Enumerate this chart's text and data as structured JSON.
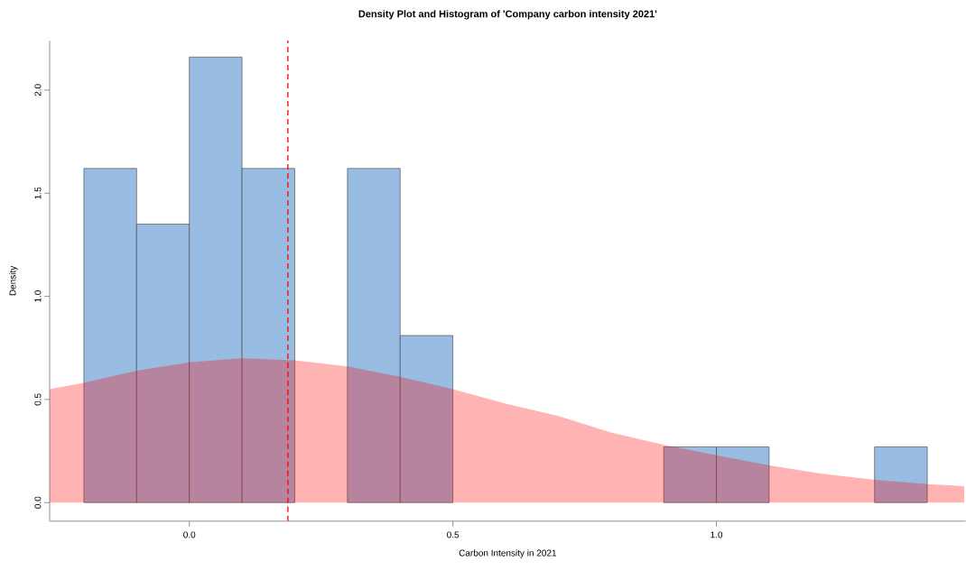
{
  "chart_data": {
    "type": "histogram",
    "title": "Density Plot and Histogram of 'Company carbon intensity 2021'",
    "xlabel": "Carbon Intensity in 2021",
    "ylabel": "Density",
    "series": [
      {
        "bins": [
          -0.2,
          -0.1,
          0,
          0.1,
          0.2,
          0.3,
          0.4,
          0.5,
          0.6,
          0.7,
          0.8,
          0.9,
          1.0,
          1.1,
          1.2,
          1.3,
          1.4
        ],
        "values": [
          1.62,
          1.35,
          2.16,
          1.62,
          0,
          1.62,
          0.81,
          0,
          0,
          0,
          0,
          0.27,
          0.27,
          0,
          0,
          0.27
        ],
        "color": "#99bce3"
      },
      {
        "type": "area",
        "x": [
          -0.265,
          -0.2,
          -0.1,
          0,
          0.1,
          0.2,
          0.3,
          0.4,
          0.5,
          0.6,
          0.7,
          0.8,
          0.9,
          1.0,
          1.1,
          1.2,
          1.3,
          1.4,
          1.47
        ],
        "values": [
          0.55,
          0.58,
          0.64,
          0.68,
          0.7,
          0.69,
          0.66,
          0.61,
          0.55,
          0.48,
          0.42,
          0.34,
          0.28,
          0.23,
          0.18,
          0.14,
          0.11,
          0.09,
          0.08
        ],
        "color": "#ffb3b3"
      }
    ],
    "ref_lines": [
      {
        "axis": "x",
        "value": 0.187,
        "color": "#ff0000",
        "line_style": "dashed"
      }
    ],
    "xlim": [
      -0.265,
      1.473
    ],
    "ylim": [
      -0.09,
      2.24
    ],
    "xticks": [
      {
        "value": 0,
        "label": "0.0"
      },
      {
        "value": 0.5,
        "label": "0.5"
      },
      {
        "value": 1,
        "label": "1.0"
      }
    ],
    "yticks": [
      {
        "value": 0,
        "label": "0.0"
      },
      {
        "value": 0.5,
        "label": "0.5"
      },
      {
        "value": 1,
        "label": "1.0"
      },
      {
        "value": 1.5,
        "label": "1.5"
      },
      {
        "value": 2,
        "label": "2.0"
      }
    ]
  }
}
